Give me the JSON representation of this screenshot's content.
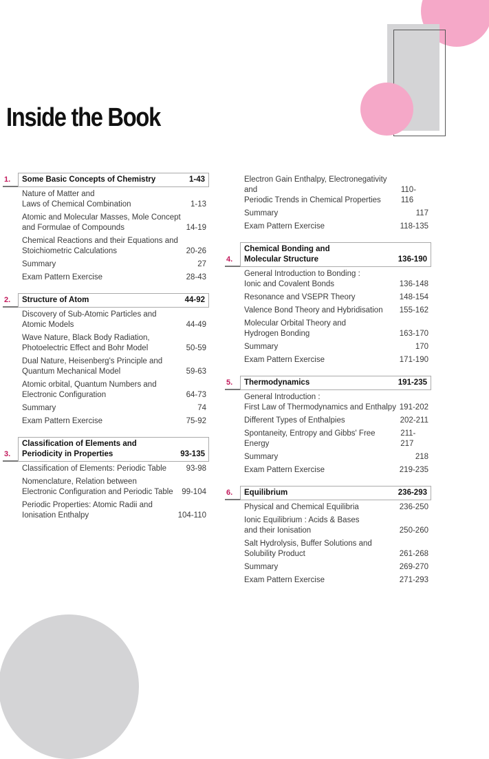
{
  "title": "Inside the Book",
  "continuation": [
    {
      "title": "Electron Gain Enthalpy, Electronegativity and\nPeriodic Trends in Chemical Properties",
      "pages": "110-116"
    },
    {
      "title": "Summary",
      "pages": "117"
    },
    {
      "title": "Exam Pattern Exercise",
      "pages": "118-135"
    }
  ],
  "chapters": [
    {
      "num": "1.",
      "title": "Some Basic Concepts  of Chemistry",
      "pages": "1-43",
      "items": [
        {
          "title": "Nature of Matter and\nLaws of Chemical Combination",
          "pages": "1-13"
        },
        {
          "title": "Atomic and Molecular Masses, Mole Concept\nand Formulae of Compounds",
          "pages": "14-19"
        },
        {
          "title": "Chemical Reactions and their Equations and\nStoichiometric Calculations",
          "pages": "20-26"
        },
        {
          "title": "Summary",
          "pages": "27"
        },
        {
          "title": "Exam Pattern Exercise",
          "pages": "28-43"
        }
      ]
    },
    {
      "num": "2.",
      "title": "Structure of Atom",
      "pages": "44-92",
      "items": [
        {
          "title": "Discovery of Sub-Atomic Particles and\nAtomic Models",
          "pages": "44-49"
        },
        {
          "title": "Wave Nature, Black Body Radiation,\nPhotoelectric Effect and Bohr Model",
          "pages": "50-59"
        },
        {
          "title": "Dual Nature, Heisenberg's Principle and\nQuantum Mechanical Model",
          "pages": "59-63"
        },
        {
          "title": "Atomic orbital, Quantum Numbers and\nElectronic Configuration",
          "pages": "64-73"
        },
        {
          "title": "Summary",
          "pages": "74"
        },
        {
          "title": "Exam Pattern Exercise",
          "pages": "75-92"
        }
      ]
    },
    {
      "num": "3.",
      "title": "Classification of Elements and\nPeriodicity in Properties",
      "pages": "93-135",
      "items": [
        {
          "title": "Classification of Elements: Periodic Table",
          "pages": "93-98"
        },
        {
          "title": "Nomenclature, Relation between\nElectronic Configuration and Periodic Table",
          "pages": "99-104"
        },
        {
          "title": "Periodic Properties: Atomic Radii and\nIonisation Enthalpy",
          "pages": "104-110"
        }
      ]
    },
    {
      "num": "4.",
      "title": "Chemical Bonding and\nMolecular Structure",
      "pages": "136-190",
      "items": [
        {
          "title": "General Introduction to Bonding :\nIonic and Covalent Bonds",
          "pages": "136-148"
        },
        {
          "title": "Resonance and VSEPR Theory",
          "pages": "148-154"
        },
        {
          "title": "Valence Bond Theory and Hybridisation",
          "pages": "155-162"
        },
        {
          "title": "Molecular Orbital Theory and\nHydrogen Bonding",
          "pages": "163-170"
        },
        {
          "title": "Summary",
          "pages": "170"
        },
        {
          "title": "Exam Pattern Exercise",
          "pages": "171-190"
        }
      ]
    },
    {
      "num": "5.",
      "title": "Thermodynamics",
      "pages": "191-235",
      "items": [
        {
          "title": "General Introduction :\nFirst Law of Thermodynamics and Enthalpy",
          "pages": "191-202"
        },
        {
          "title": "Different Types of Enthalpies",
          "pages": "202-211"
        },
        {
          "title": "Spontaneity, Entropy and Gibbs' Free Energy",
          "pages": "211-217"
        },
        {
          "title": "Summary",
          "pages": "218"
        },
        {
          "title": "Exam Pattern Exercise",
          "pages": "219-235"
        }
      ]
    },
    {
      "num": "6.",
      "title": "Equilibrium",
      "pages": "236-293",
      "items": [
        {
          "title": "Physical and Chemical Equilibria",
          "pages": "236-250"
        },
        {
          "title": "Ionic Equilibrium : Acids & Bases\nand their Ionisation",
          "pages": "250-260"
        },
        {
          "title": "Salt Hydrolysis, Buffer Solutions and\nSolubility Product",
          "pages": "261-268"
        },
        {
          "title": "Summary",
          "pages": "269-270"
        },
        {
          "title": "Exam Pattern Exercise",
          "pages": "271-293"
        }
      ]
    }
  ]
}
